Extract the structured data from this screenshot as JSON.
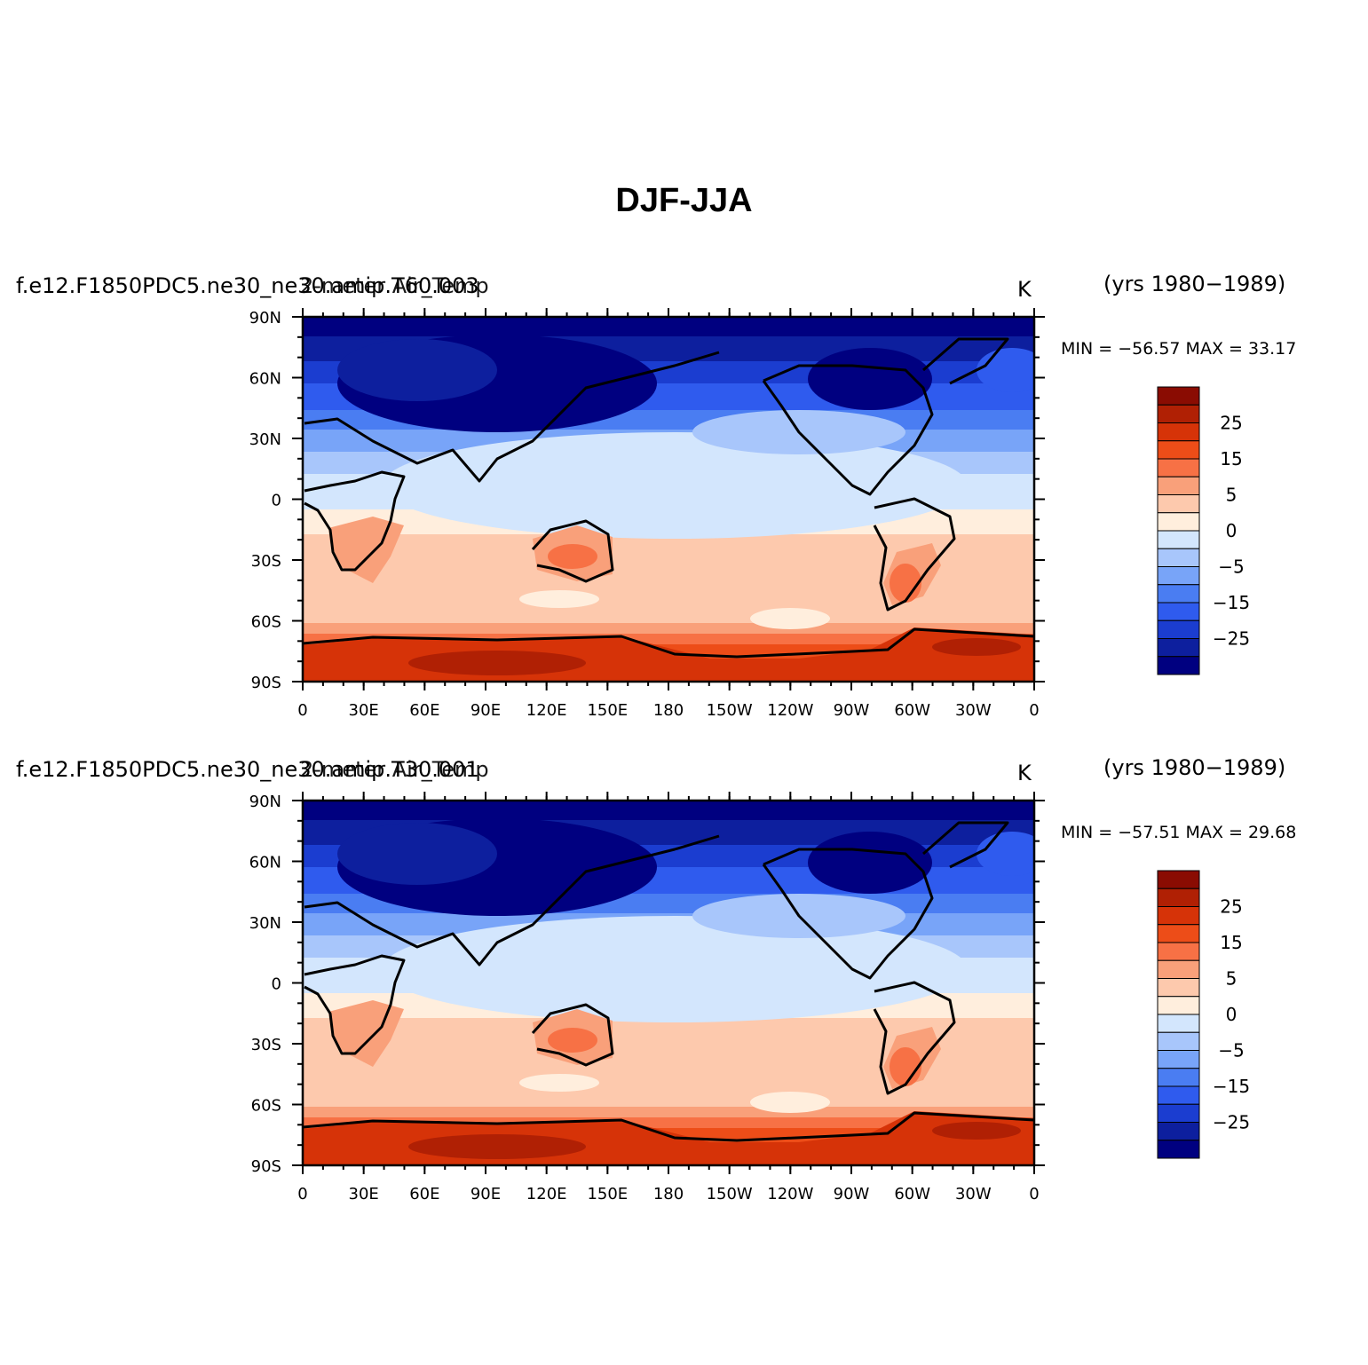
{
  "title": "DJF-JJA",
  "colors": {
    "levels": [
      "#000080",
      "#0d1f9e",
      "#1b3dd0",
      "#2f5bee",
      "#4a7df2",
      "#78a4f8",
      "#a8c6fb",
      "#d3e6fd",
      "#ffeedd",
      "#fdc9ad",
      "#f9a07a",
      "#f77145",
      "#ed4d18",
      "#d63308",
      "#b02004",
      "#8a0c02"
    ]
  },
  "colorbar": {
    "labels": [
      "25",
      "15",
      "5",
      "0",
      "-5",
      "-15",
      "-25"
    ]
  },
  "axes": {
    "lon_labels": [
      "0",
      "30E",
      "60E",
      "90E",
      "120E",
      "150E",
      "180",
      "150W",
      "120W",
      "90W",
      "60W",
      "30W",
      "0"
    ],
    "lat_labels": [
      "90N",
      "60N",
      "30N",
      "0",
      "30S",
      "60S",
      "90S"
    ]
  },
  "panels": [
    {
      "case": "f.e12.F1850PDC5.ne30_ne30.amip.T60.003",
      "variable": "2-meter Air_Temp",
      "units": "K",
      "years": "(yrs 1980−1989)",
      "stats": "MIN = −56.57 MAX =  33.17"
    },
    {
      "case": "f.e12.F1850PDC5.ne30_ne30.amip.T30.001",
      "variable": "2-meter Air_Temp",
      "units": "K",
      "years": "(yrs 1980−1989)",
      "stats": "MIN = −57.51 MAX =  29.68"
    }
  ]
}
